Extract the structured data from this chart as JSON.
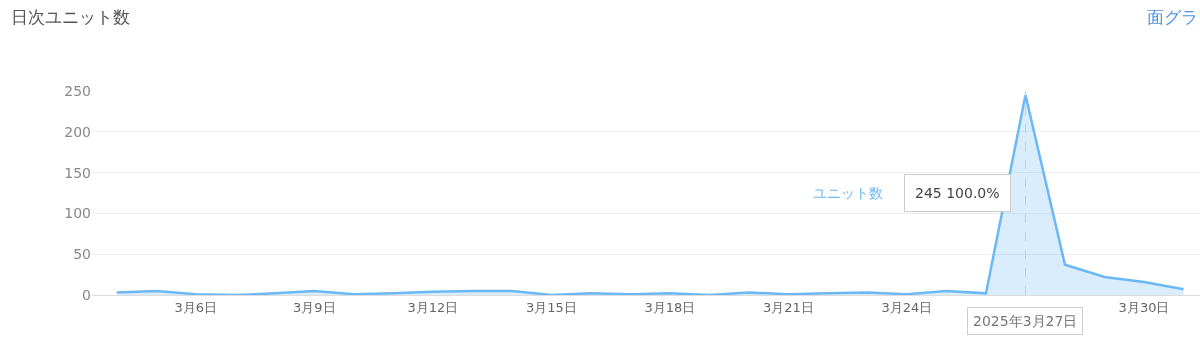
{
  "chart_data": {
    "type": "area",
    "title": "日次ユニット数",
    "x": [
      "2025-03-04",
      "2025-03-05",
      "2025-03-06",
      "2025-03-07",
      "2025-03-08",
      "2025-03-09",
      "2025-03-10",
      "2025-03-11",
      "2025-03-12",
      "2025-03-13",
      "2025-03-14",
      "2025-03-15",
      "2025-03-16",
      "2025-03-17",
      "2025-03-18",
      "2025-03-19",
      "2025-03-20",
      "2025-03-21",
      "2025-03-22",
      "2025-03-23",
      "2025-03-24",
      "2025-03-25",
      "2025-03-26",
      "2025-03-27",
      "2025-03-28",
      "2025-03-29",
      "2025-03-30",
      "2025-03-31"
    ],
    "series": [
      {
        "name": "ユニット数",
        "color": "#6cb8f5",
        "values": [
          3,
          5,
          1,
          0,
          2,
          5,
          1,
          2,
          4,
          5,
          5,
          0,
          2,
          1,
          2,
          0,
          3,
          1,
          2,
          3,
          1,
          5,
          2,
          245,
          37,
          22,
          16,
          7
        ]
      }
    ],
    "xlim": [
      "2025-03-03T09:00",
      "2025-03-31T10:00"
    ],
    "xticks": [
      {
        "value": "2025-03-06",
        "label": "3月6日"
      },
      {
        "value": "2025-03-09",
        "label": "3月9日"
      },
      {
        "value": "2025-03-12",
        "label": "3月12日"
      },
      {
        "value": "2025-03-15",
        "label": "3月15日"
      },
      {
        "value": "2025-03-18",
        "label": "3月18日"
      },
      {
        "value": "2025-03-21",
        "label": "3月21日"
      },
      {
        "value": "2025-03-24",
        "label": "3月24日"
      },
      {
        "value": "2025-03-30",
        "label": "3月30日"
      }
    ],
    "ylim": [
      0,
      250
    ],
    "yticks": [
      0,
      50,
      100,
      150,
      200,
      250
    ],
    "grid": "y",
    "legend": false,
    "marker": "none",
    "ref_lines": [
      {
        "axis": "x",
        "value": "2025-03-27",
        "label": "2025年3月27日",
        "color": "#cccccc",
        "line_style": "dashed"
      }
    ],
    "annotations": [
      "245 100.0%",
      "面グラ"
    ]
  }
}
